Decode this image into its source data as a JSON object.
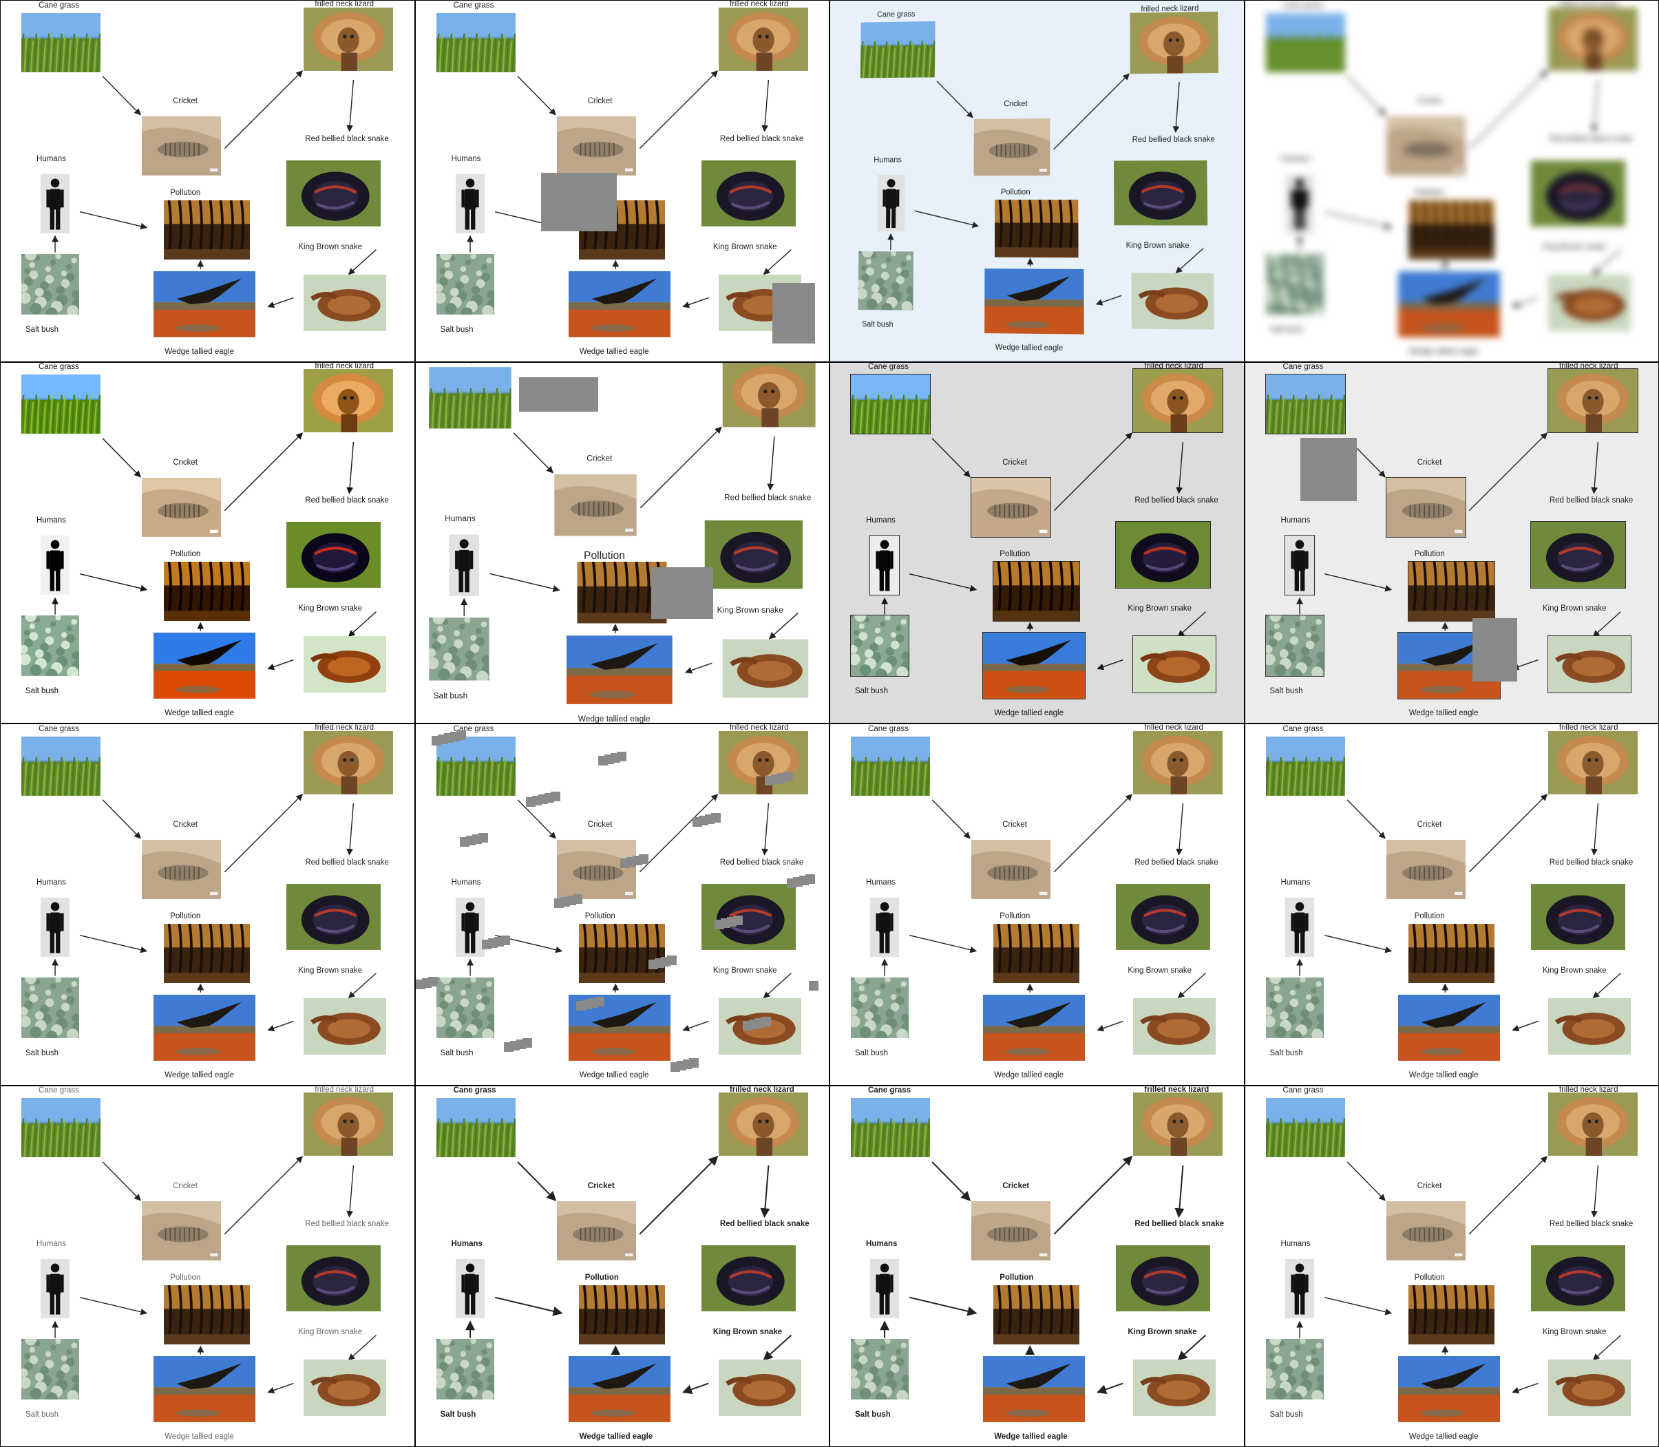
{
  "diagram": {
    "labels": {
      "cane_grass": "Cane grass",
      "frilled_neck_lizard": "frilled neck lizard",
      "cricket": "Cricket",
      "red_bellied_black_snake": "Red bellied black snake",
      "humans": "Humans",
      "pollution": "Pollution",
      "king_brown_snake": "King Brown snake",
      "salt_bush": "Salt bush",
      "wedge_tailed_eagle": "Wedge tallied eagle"
    },
    "icons": {
      "cane_grass": "grass-photo-icon",
      "frilled_neck_lizard": "lizard-photo-icon",
      "cricket": "cricket-photo-icon",
      "red_bellied_black_snake": "black-snake-photo-icon",
      "humans": "human-figure-icon",
      "pollution": "pollution-photo-icon",
      "king_brown_snake": "brown-snake-photo-icon",
      "salt_bush": "saltbush-photo-icon",
      "wedge_tailed_eagle": "eagle-photo-icon"
    },
    "arrows": [
      {
        "from": "cane_grass",
        "to": "cricket"
      },
      {
        "from": "cricket",
        "to": "frilled_neck_lizard"
      },
      {
        "from": "frilled_neck_lizard",
        "to": "red_bellied_black_snake"
      },
      {
        "from": "humans",
        "to": "pollution"
      },
      {
        "from": "salt_bush",
        "to": "humans"
      },
      {
        "from": "wedge_tailed_eagle",
        "to": "pollution"
      },
      {
        "from": "king_brown_snake",
        "to": "wedge_tailed_eagle"
      },
      {
        "from": "red_bellied_black_snake",
        "to": "king_brown_snake"
      }
    ]
  },
  "panels": [
    {
      "variant": "original"
    },
    {
      "variant": "occluded"
    },
    {
      "variant": "perspective"
    },
    {
      "variant": "blurred"
    },
    {
      "variant": "sharpened"
    },
    {
      "variant": "cropped-zoom"
    },
    {
      "variant": "gray-background"
    },
    {
      "variant": "occluded-gray"
    },
    {
      "variant": "original"
    },
    {
      "variant": "noise-squares"
    },
    {
      "variant": "original"
    },
    {
      "variant": "original"
    },
    {
      "variant": "light-text"
    },
    {
      "variant": "bold-text"
    },
    {
      "variant": "bold-text"
    },
    {
      "variant": "original"
    }
  ],
  "colors": {
    "grid_border": "#000000",
    "occluder": "#8a8a8a",
    "perspective_bg": "#e8f0fa",
    "gray_bg": "#dcdcdc",
    "light_gray_bg": "#ececec"
  }
}
